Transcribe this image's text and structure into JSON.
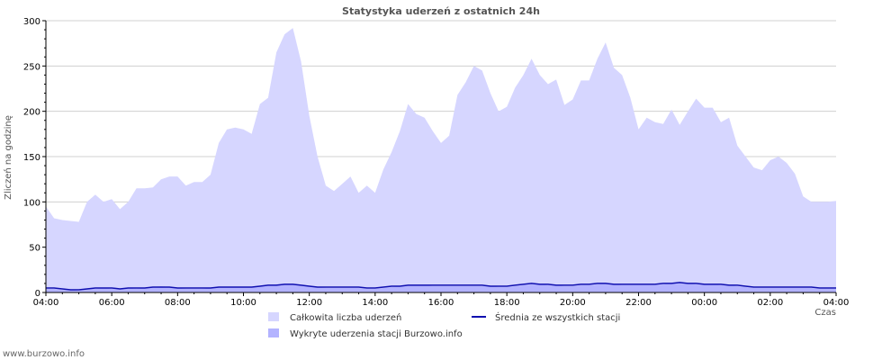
{
  "chart_data": {
    "type": "area",
    "title": "Statystyka uderzeń z ostatnich 24h",
    "xlabel": "Czas",
    "ylabel": "Zliczeń na godzinę",
    "ylim": [
      0,
      300
    ],
    "yticks": [
      0,
      50,
      100,
      150,
      200,
      250,
      300
    ],
    "xticks": [
      "04:00",
      "06:00",
      "08:00",
      "10:00",
      "12:00",
      "14:00",
      "16:00",
      "18:00",
      "20:00",
      "22:00",
      "00:00",
      "02:00",
      "04:00"
    ],
    "x_range_hours": [
      0,
      24
    ],
    "grid": true,
    "legend_placement": "bottom",
    "x": [
      0,
      0.25,
      0.5,
      0.75,
      1,
      1.25,
      1.5,
      1.75,
      2,
      2.25,
      2.5,
      2.75,
      3,
      3.25,
      3.5,
      3.75,
      4,
      4.25,
      4.5,
      4.75,
      5,
      5.25,
      5.5,
      5.75,
      6,
      6.25,
      6.5,
      6.75,
      7,
      7.25,
      7.5,
      7.75,
      8,
      8.25,
      8.5,
      8.75,
      9,
      9.25,
      9.5,
      9.75,
      10,
      10.25,
      10.5,
      10.75,
      11,
      11.25,
      11.5,
      11.75,
      12,
      12.25,
      12.5,
      12.75,
      13,
      13.25,
      13.5,
      13.75,
      14,
      14.25,
      14.5,
      14.75,
      15,
      15.25,
      15.5,
      15.75,
      16,
      16.25,
      16.5,
      16.75,
      17,
      17.25,
      17.5,
      17.75,
      18,
      18.25,
      18.5,
      18.75,
      19,
      19.25,
      19.5,
      19.75,
      20,
      20.25,
      20.5,
      20.75,
      21,
      21.25,
      21.5,
      21.75,
      22,
      22.25,
      22.5,
      22.75,
      23,
      23.25,
      23.5,
      23.75,
      24
    ],
    "series": [
      {
        "name": "Całkowita liczba uderzeń",
        "kind": "area",
        "color": "#d6d6ff",
        "values": [
          95,
          82,
          80,
          79,
          78,
          100,
          108,
          100,
          103,
          92,
          100,
          115,
          115,
          116,
          125,
          128,
          128,
          118,
          122,
          122,
          130,
          165,
          180,
          182,
          180,
          175,
          208,
          215,
          265,
          285,
          292,
          255,
          195,
          150,
          118,
          112,
          120,
          128,
          110,
          118,
          110,
          136,
          155,
          178,
          208,
          197,
          193,
          178,
          165,
          173,
          218,
          232,
          250,
          245,
          220,
          200,
          205,
          226,
          240,
          258,
          240,
          230,
          235,
          207,
          213,
          234,
          234,
          258,
          276,
          248,
          240,
          215,
          180,
          193,
          188,
          186,
          202,
          185,
          200,
          214,
          204,
          204,
          188,
          193,
          162,
          150,
          138,
          135,
          146,
          150,
          143,
          131,
          106,
          100,
          100,
          100,
          101
        ]
      },
      {
        "name": "Wykryte uderzenia stacji Burzowo.info",
        "kind": "area",
        "color": "#b3b3ff",
        "values": [
          4,
          4,
          3,
          3,
          2,
          4,
          4,
          5,
          4,
          4,
          5,
          4,
          5,
          6,
          7,
          6,
          5,
          4,
          4,
          4,
          5,
          6,
          6,
          6,
          6,
          6,
          7,
          8,
          9,
          9,
          9,
          8,
          7,
          6,
          5,
          5,
          5,
          5,
          5,
          4,
          4,
          5,
          6,
          7,
          8,
          8,
          8,
          7,
          7,
          7,
          7,
          7,
          7,
          7,
          7,
          6,
          6,
          7,
          8,
          9,
          9,
          8,
          8,
          7,
          7,
          8,
          8,
          9,
          10,
          9,
          8,
          8,
          8,
          8,
          8,
          9,
          10,
          11,
          10,
          9,
          9,
          9,
          8,
          8,
          7,
          6,
          5,
          5,
          5,
          5,
          5,
          5,
          5,
          5,
          4,
          4,
          4
        ]
      },
      {
        "name": "Średnia ze wszystkich stacji",
        "kind": "line",
        "color": "#1010b0",
        "values": [
          5,
          5,
          4,
          3,
          3,
          4,
          5,
          5,
          5,
          4,
          5,
          5,
          5,
          6,
          6,
          6,
          5,
          5,
          5,
          5,
          5,
          6,
          6,
          6,
          6,
          6,
          7,
          8,
          8,
          9,
          9,
          8,
          7,
          6,
          6,
          6,
          6,
          6,
          6,
          5,
          5,
          6,
          7,
          7,
          8,
          8,
          8,
          8,
          8,
          8,
          8,
          8,
          8,
          8,
          7,
          7,
          7,
          8,
          9,
          10,
          9,
          9,
          8,
          8,
          8,
          9,
          9,
          10,
          10,
          9,
          9,
          9,
          9,
          9,
          9,
          10,
          10,
          11,
          10,
          10,
          9,
          9,
          9,
          8,
          8,
          7,
          6,
          6,
          6,
          6,
          6,
          6,
          6,
          6,
          5,
          5,
          5
        ]
      }
    ]
  },
  "watermark": "www.burzowo.info"
}
